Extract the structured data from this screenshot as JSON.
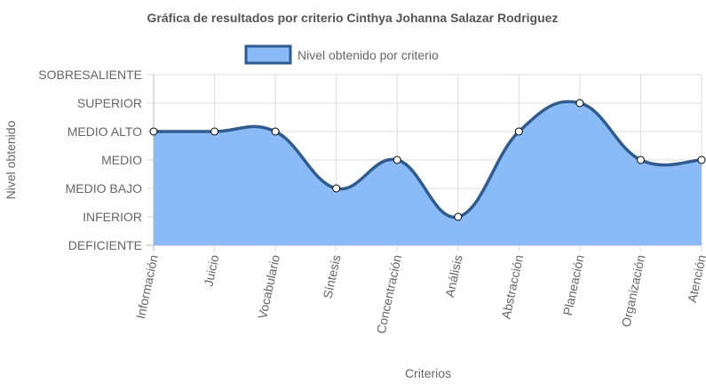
{
  "chart_data": {
    "type": "area",
    "title": "Gráfica de resultados por criterio Cinthya Johanna Salazar Rodriguez",
    "xlabel": "Criterios",
    "ylabel": "Nivel obtenido",
    "categories": [
      "Información",
      "Juicio",
      "Vocabulario",
      "Síntesis",
      "Concentración",
      "Análisis",
      "Abstracción",
      "Planeación",
      "Organización",
      "Atención"
    ],
    "y_levels": [
      "DEFICIENTE",
      "INFERIOR",
      "MEDIO BAJO",
      "MEDIO",
      "MEDIO ALTO",
      "SUPERIOR",
      "SOBRESALIENTE"
    ],
    "ylim": [
      0,
      6
    ],
    "grid": true,
    "legend_position": "top",
    "series": [
      {
        "name": "Nivel obtenido por criterio",
        "values": [
          4,
          4,
          4,
          2,
          3,
          1,
          4,
          5,
          3,
          3
        ],
        "fill_color": "#8bbbf7",
        "line_color": "#2f5b8f"
      }
    ]
  }
}
